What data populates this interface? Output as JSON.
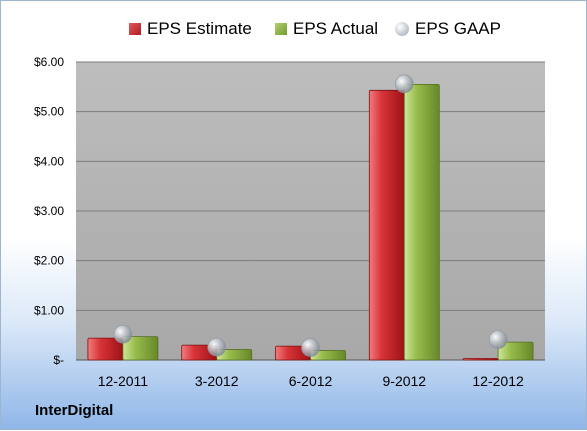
{
  "chart_data": {
    "type": "bar",
    "categories": [
      "12-2011",
      "3-2012",
      "6-2012",
      "9-2012",
      "12-2012"
    ],
    "series": [
      {
        "name": "EPS Estimate",
        "values": [
          0.44,
          0.3,
          0.28,
          5.43,
          0.03
        ],
        "color": "#c0282b"
      },
      {
        "name": "EPS Actual",
        "values": [
          0.47,
          0.21,
          0.19,
          5.55,
          0.36
        ],
        "color": "#8db03e"
      },
      {
        "name": "EPS GAAP",
        "type": "scatter",
        "values": [
          0.52,
          0.26,
          0.25,
          5.56,
          0.41
        ],
        "color": "#b8bec6"
      }
    ],
    "ylim": [
      0,
      6
    ],
    "yticks": [
      0,
      1,
      2,
      3,
      4,
      5,
      6
    ],
    "ytick_labels": [
      "$-",
      "$1.00",
      "$2.00",
      "$3.00",
      "$4.00",
      "$5.00",
      "$6.00"
    ],
    "grid": true,
    "legend": "top"
  },
  "company": "InterDigital"
}
